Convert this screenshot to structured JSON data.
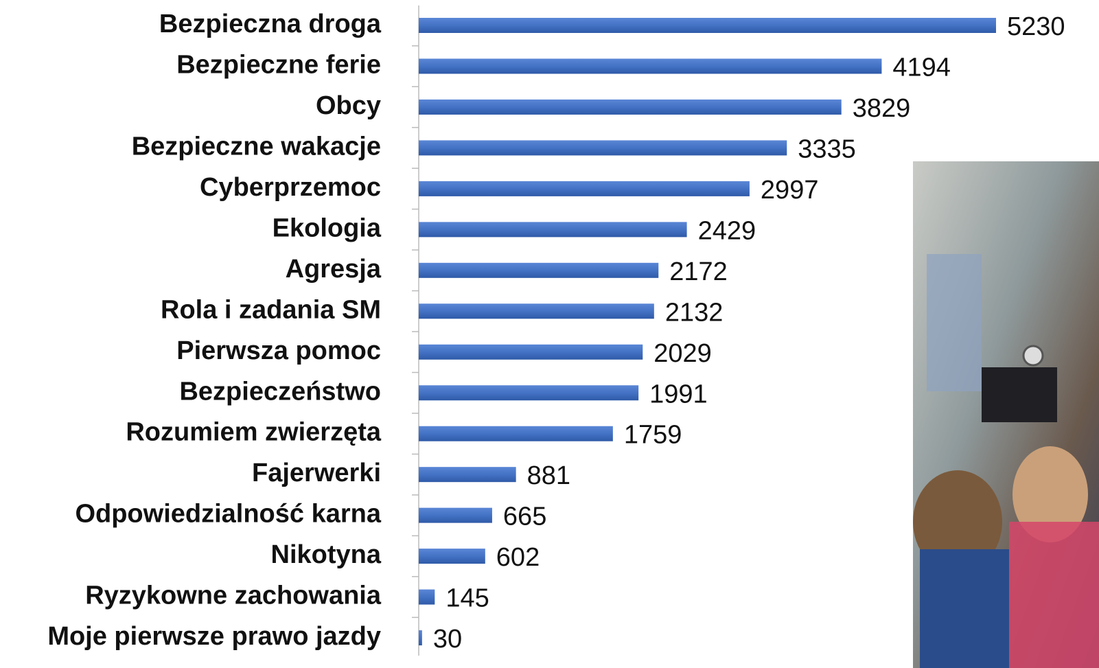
{
  "chart_data": {
    "type": "bar",
    "orientation": "horizontal",
    "categories": [
      "Bezpieczna droga",
      "Bezpieczne ferie",
      "Obcy",
      "Bezpieczne wakacje",
      "Cyberprzemoc",
      "Ekologia",
      "Agresja",
      "Rola i zadania SM",
      "Pierwsza pomoc",
      "Bezpieczeństwo",
      "Rozumiem zwierzęta",
      "Fajerwerki",
      "Odpowiedzialność karna",
      "Nikotyna",
      "Ryzykowne zachowania",
      "Moje pierwsze prawo jazdy"
    ],
    "values": [
      5230,
      4194,
      3829,
      3335,
      2997,
      2429,
      2172,
      2132,
      2029,
      1991,
      1759,
      881,
      665,
      602,
      145,
      30
    ],
    "color": "#4472c4"
  }
}
